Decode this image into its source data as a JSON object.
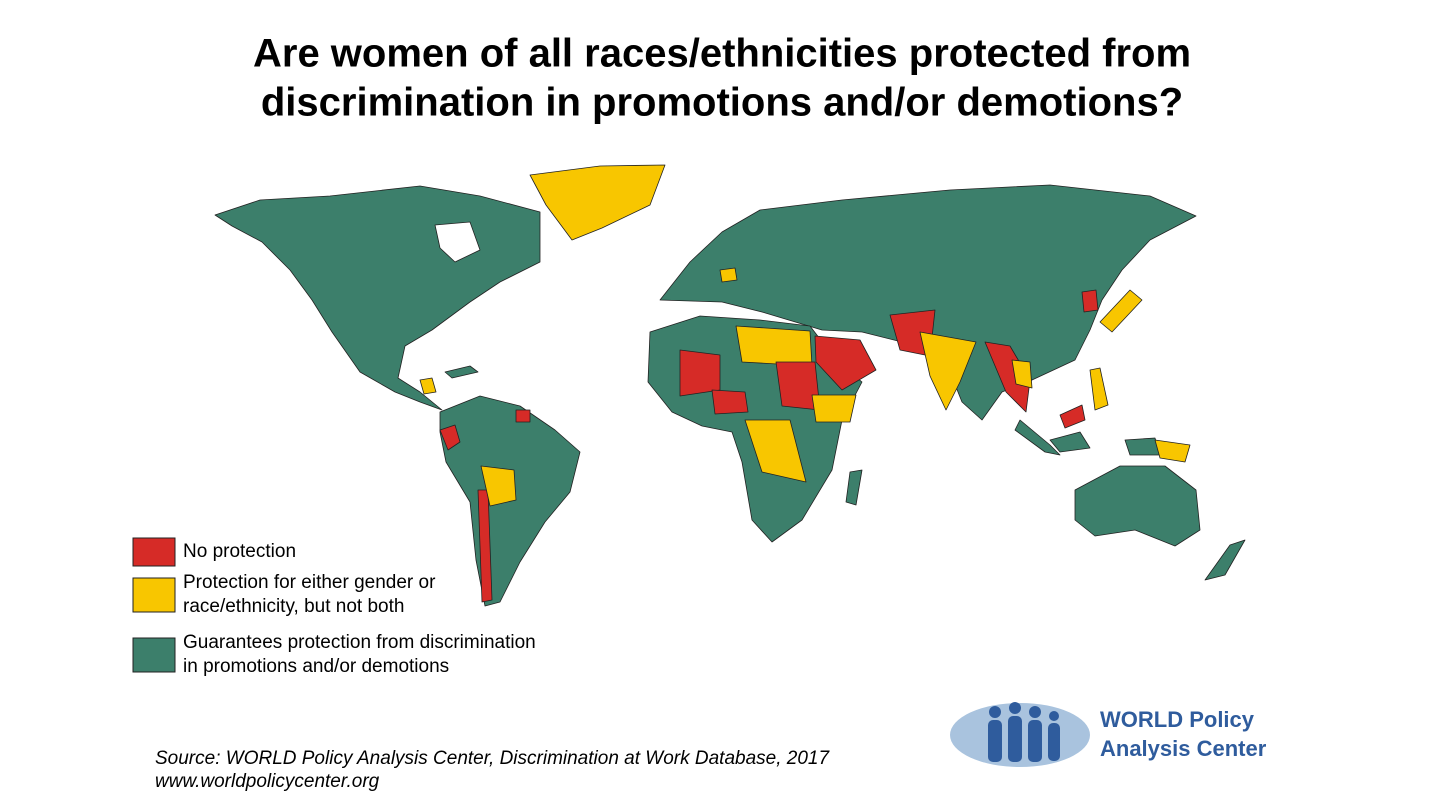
{
  "title": [
    "Are women of all races/ethnicities protected from",
    "discrimination in promotions and/or demotions?"
  ],
  "legend": [
    {
      "lines": [
        "No protection"
      ],
      "color": "#d62b27"
    },
    {
      "lines": [
        "Protection for either gender or",
        "race/ethnicity, but not both"
      ],
      "color": "#f8c600"
    },
    {
      "lines": [
        "Guarantees protection from discrimination",
        "in promotions and/or demotions"
      ],
      "color": "#3c7f6b"
    }
  ],
  "source": [
    "Source: WORLD Policy Analysis Center, Discrimination at Work Database, 2017",
    "www.worldpolicycenter.org"
  ],
  "logo": [
    "WORLD Policy",
    "Analysis Center"
  ]
}
